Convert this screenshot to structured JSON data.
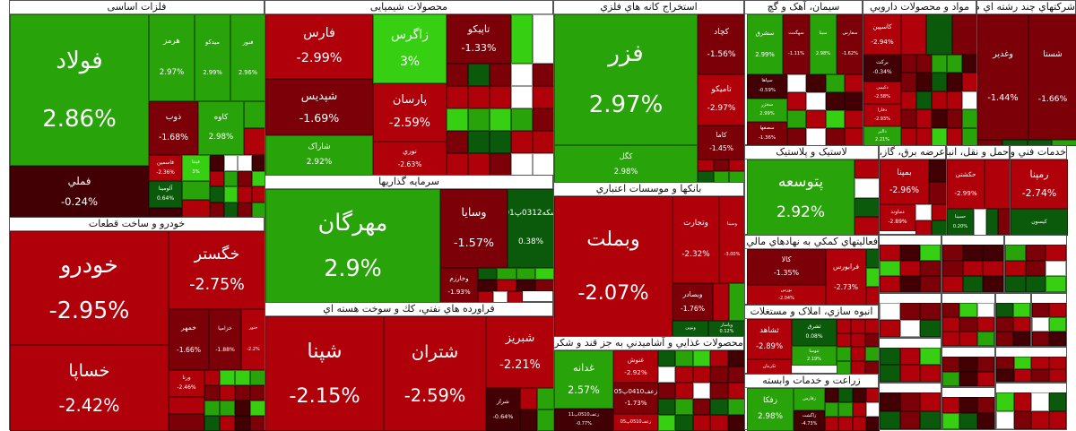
{
  "colors": {
    "g": "#28a30a",
    "lg": "#36cf12",
    "dg": "#0b5a0b",
    "r": "#b0000a",
    "dr": "#7b0008",
    "vd": "#420004"
  },
  "sectors": [
    {
      "title": "فلزات اساسی",
      "tiles": [
        {
          "name": "فولاد",
          "change": "2.86%",
          "tone": "g"
        },
        {
          "name": "فملي",
          "change": "-0.24%",
          "tone": "vd"
        },
        {
          "name": "هرمز",
          "change": "2.97%",
          "tone": "g"
        },
        {
          "name": "میدکو",
          "change": "2.99%",
          "tone": "g"
        },
        {
          "name": "فنور",
          "change": "2.96%",
          "tone": "g"
        },
        {
          "name": "ذوب",
          "change": "-1.68%",
          "tone": "dr"
        },
        {
          "name": "کاوه",
          "change": "2.98%",
          "tone": "g"
        },
        {
          "name": "فاسمین",
          "change": "-2.36%",
          "tone": "r"
        },
        {
          "name": "فپنتا",
          "change": "3%",
          "tone": "lg"
        },
        {
          "name": "آلومینا",
          "change": "0.64%",
          "tone": "dg"
        }
      ]
    },
    {
      "title": "خودرو و ساخت قطعات",
      "tiles": [
        {
          "name": "خودرو",
          "change": "-2.95%",
          "tone": "r"
        },
        {
          "name": "خساپا",
          "change": "-2.42%",
          "tone": "r"
        },
        {
          "name": "خگستر",
          "change": "-2.75%",
          "tone": "r"
        },
        {
          "name": "خمهر",
          "change": "-1.66%",
          "tone": "dr"
        },
        {
          "name": "خزامیا",
          "change": "-1.88%",
          "tone": "dr"
        },
        {
          "name": "ختور",
          "change": "-2.2%",
          "tone": "r"
        },
        {
          "name": "ورنا",
          "change": "-2.46%",
          "tone": "r"
        }
      ]
    },
    {
      "title": "محصولات شیمیایی",
      "tiles": [
        {
          "name": "فارس",
          "change": "-2.99%",
          "tone": "r"
        },
        {
          "name": "شپدیس",
          "change": "-1.69%",
          "tone": "dr"
        },
        {
          "name": "شاراک",
          "change": "2.92%",
          "tone": "g"
        },
        {
          "name": "زاگرس",
          "change": "3%",
          "tone": "lg"
        },
        {
          "name": "پارسان",
          "change": "-2.59%",
          "tone": "r"
        },
        {
          "name": "نوري",
          "change": "-2.63%",
          "tone": "r"
        },
        {
          "name": "تاپیکو",
          "change": "-1.33%",
          "tone": "dr"
        }
      ]
    },
    {
      "title": "سرمایه گذاریها",
      "tiles": [
        {
          "name": "مهرگان",
          "change": "2.9%",
          "tone": "g"
        },
        {
          "name": "وسایا",
          "change": "-1.57%",
          "tone": "dr"
        },
        {
          "name": "سکه0312پ01",
          "change": "0.38%",
          "tone": "dg"
        },
        {
          "name": "وخارزم",
          "change": "-1.93%",
          "tone": "dr"
        }
      ]
    },
    {
      "title": "فراورده هاي نفتي، کك و سوخت هسته اي",
      "tiles": [
        {
          "name": "شپنا",
          "change": "-2.15%",
          "tone": "r"
        },
        {
          "name": "شتران",
          "change": "-2.59%",
          "tone": "r"
        },
        {
          "name": "شبریز",
          "change": "-2.21%",
          "tone": "r"
        },
        {
          "name": "شراز",
          "change": "-0.64%",
          "tone": "vd"
        }
      ]
    },
    {
      "title": "استخراج کانه هاي فلزي",
      "tiles": [
        {
          "name": "فزر",
          "change": "2.97%",
          "tone": "g"
        },
        {
          "name": "کگل",
          "change": "2.98%",
          "tone": "g"
        },
        {
          "name": "کچاد",
          "change": "-1.56%",
          "tone": "dr"
        },
        {
          "name": "تامیکو",
          "change": "-2.97%",
          "tone": "r"
        },
        {
          "name": "کاما",
          "change": "-1.45%",
          "tone": "dr"
        }
      ]
    },
    {
      "title": "بانکها و موسسات اعتباري",
      "tiles": [
        {
          "name": "وبملت",
          "change": "-2.07%",
          "tone": "r"
        },
        {
          "name": "وتجارت",
          "change": "-2.32%",
          "tone": "r"
        },
        {
          "name": "وسینا",
          "change": "-3.00%",
          "tone": "r"
        },
        {
          "name": "وبصادر",
          "change": "-1.76%",
          "tone": "dr"
        },
        {
          "name": "ونوین",
          "change": "",
          "tone": "dg"
        },
        {
          "name": "وپاسار",
          "change": "0.12%",
          "tone": "dg"
        }
      ]
    },
    {
      "title": "محصولات غذايي و آشاميدني به جز قند و شكر",
      "tiles": [
        {
          "name": "غدانه",
          "change": "2.57%",
          "tone": "g"
        },
        {
          "name": "زعف0510پ11",
          "change": "-0.77%",
          "tone": "vd"
        },
        {
          "name": "غنوش",
          "change": "-2.92%",
          "tone": "r"
        },
        {
          "name": "زعف0410پ05",
          "change": "-1.73%",
          "tone": "dr"
        },
        {
          "name": "زعف0510پ05",
          "change": "",
          "tone": "r"
        }
      ]
    },
    {
      "title": "سیمان، آهک و گچ",
      "tiles": [
        {
          "name": "سشرق",
          "change": "2.99%",
          "tone": "g"
        },
        {
          "name": "سهگمت",
          "change": "-1.11%",
          "tone": "dr"
        },
        {
          "name": "سیتا",
          "change": "2.98%",
          "tone": "g"
        },
        {
          "name": "سفارس",
          "change": "-1.62%",
          "tone": "dr"
        },
        {
          "name": "سپاها",
          "change": "-0.59%",
          "tone": "vd"
        },
        {
          "name": "سخزر",
          "change": "2.99%",
          "tone": "g"
        },
        {
          "name": "سصفها",
          "change": "-1.36%",
          "tone": "dr"
        }
      ]
    },
    {
      "title": "مواد و محصولات دارويي",
      "tiles": [
        {
          "name": "کاسپین",
          "change": "-2.94%",
          "tone": "r"
        },
        {
          "name": "برکت",
          "change": "-0.34%",
          "tone": "vd"
        },
        {
          "name": "دکیمی",
          "change": "-2.58%",
          "tone": "r"
        },
        {
          "name": "دفارا",
          "change": "-2.93%",
          "tone": "r"
        },
        {
          "name": "دالبر",
          "change": "2.21%",
          "tone": "g"
        }
      ]
    },
    {
      "title": "شرکتهاي چند رشته اي صنعتي",
      "tiles": [
        {
          "name": "وغدیر",
          "change": "-1.44%",
          "tone": "dr"
        },
        {
          "name": "شستا",
          "change": "-1.66%",
          "tone": "dr"
        }
      ]
    },
    {
      "title": "لاستیک و پلاستیک",
      "tiles": [
        {
          "name": "پتوسعه",
          "change": "2.92%",
          "tone": "g"
        }
      ]
    },
    {
      "title": "عرضه برق، گاز، بخاراب گرم",
      "tiles": [
        {
          "name": "بمپنا",
          "change": "-2.96%",
          "tone": "r"
        },
        {
          "name": "دماوند",
          "change": "-2.89%",
          "tone": "r"
        }
      ]
    },
    {
      "title": "حمل و نقل، انبارداري و ارتباطات",
      "tiles": [
        {
          "name": "حکشتی",
          "change": "-2.99%",
          "tone": "r"
        },
        {
          "name": "حسینا",
          "change": "0.20%",
          "tone": "dg"
        }
      ]
    },
    {
      "title": "خدمات فني و مهندسي",
      "tiles": [
        {
          "name": "رمپنا",
          "change": "-2.74%",
          "tone": "r"
        },
        {
          "name": "کیسون",
          "change": "",
          "tone": "dg"
        }
      ]
    },
    {
      "title": "فعالیتهاي کمکي به نهادهاي مالي واسط",
      "tiles": [
        {
          "name": "کالا",
          "change": "-1.35%",
          "tone": "dr"
        },
        {
          "name": "بورس",
          "change": "-2.04%",
          "tone": "r"
        },
        {
          "name": "فرابورس",
          "change": "-2.73%",
          "tone": "r"
        }
      ]
    },
    {
      "title": "انبوه سازي، املاک و مستغلات",
      "tiles": [
        {
          "name": "ثشاهد",
          "change": "-2.89%",
          "tone": "r"
        },
        {
          "name": "ثشرق",
          "change": "0.08%",
          "tone": "dg"
        },
        {
          "name": "ثنوسا",
          "change": "2.19%",
          "tone": "g"
        },
        {
          "name": "ثکرمان",
          "change": "",
          "tone": "r"
        }
      ]
    },
    {
      "title": "زراعت و خدمات وابسته",
      "tiles": [
        {
          "name": "زفکا",
          "change": "2.98%",
          "tone": "g"
        },
        {
          "name": "زفارس",
          "change": "",
          "tone": "g"
        },
        {
          "name": "زاگشت",
          "change": "-4.73%",
          "tone": "vd"
        }
      ]
    }
  ]
}
